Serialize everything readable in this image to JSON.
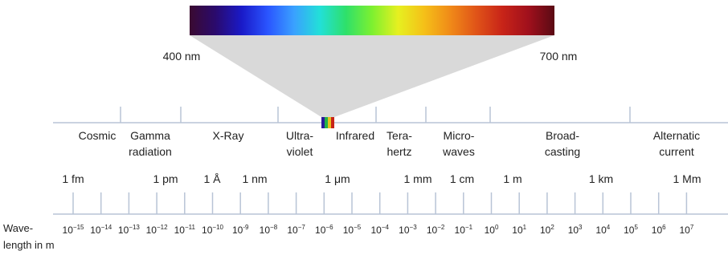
{
  "spectrum": {
    "start_label": "400 nm",
    "end_label": "700 nm",
    "colors": [
      "#3a0a30",
      "#2a0a6e",
      "#1a1ac8",
      "#2a55ff",
      "#3aa0ff",
      "#22e0d8",
      "#2ee06a",
      "#7df030",
      "#e6f020",
      "#f5c018",
      "#f08a18",
      "#e05418",
      "#c82418",
      "#a0101c",
      "#5a0a14"
    ]
  },
  "regions": [
    {
      "lines": [
        "Cosmic"
      ]
    },
    {
      "lines": [
        "Gamma",
        "radiation"
      ]
    },
    {
      "lines": [
        "X-Ray"
      ]
    },
    {
      "lines": [
        "Ultra-",
        "violet"
      ]
    },
    {
      "lines": [
        "Infrared"
      ]
    },
    {
      "lines": [
        "Tera-",
        "hertz"
      ]
    },
    {
      "lines": [
        "Micro-",
        "waves"
      ]
    },
    {
      "lines": [
        "Broad-",
        "casting"
      ]
    },
    {
      "lines": [
        "Alternatic",
        "current"
      ]
    }
  ],
  "length_units": [
    "1 fm",
    "1 pm",
    "1 Å",
    "1 nm",
    "1 μm",
    "1 mm",
    "1 cm",
    "1 m",
    "1 km",
    "1 Mm"
  ],
  "scale": {
    "label_lines": [
      "Wave-",
      "length in m"
    ],
    "base": "10",
    "exponents": [
      "−15",
      "−14",
      "−13",
      "−12",
      "−11",
      "−10",
      "-9",
      "−8",
      "−7",
      "−6",
      "−5",
      "−4",
      "−3",
      "−2",
      "−1",
      "0",
      "1",
      "2",
      "3",
      "4",
      "5",
      "6",
      "7"
    ]
  },
  "colors": {
    "line": "#b8c4d6",
    "fan": "#d9d9d9",
    "text": "#222222"
  }
}
